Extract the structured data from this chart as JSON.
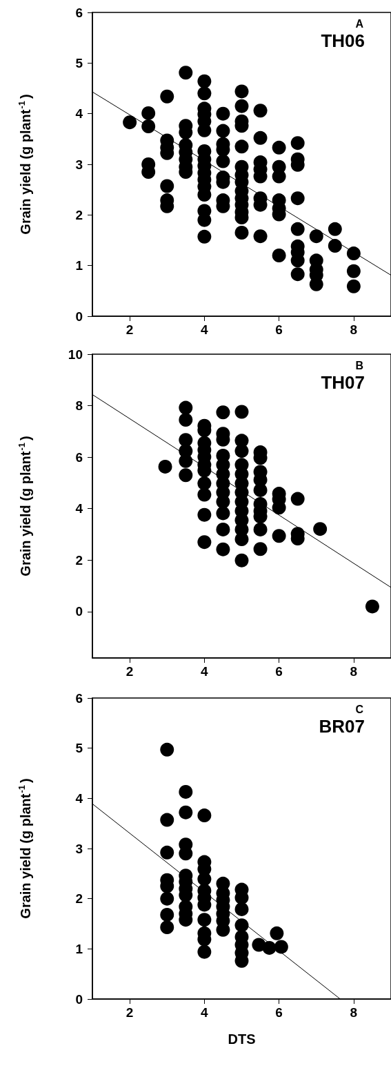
{
  "chart_data": [
    {
      "type": "scatter",
      "ylabel": "Grain yield (g plant$^{-1}$)",
      "annotations": [
        "A",
        "TH06"
      ],
      "xlim": [
        1,
        9
      ],
      "xticks": [
        2,
        4,
        6,
        8
      ],
      "ylim": [
        0,
        6
      ],
      "yticks": [
        0,
        1,
        2,
        3,
        4,
        5,
        6
      ],
      "series": [
        {
          "marker": "circle",
          "color": "#000000",
          "x": [
            2,
            2.5,
            2.5,
            2.5,
            2.5,
            3,
            3,
            3,
            3,
            3,
            3,
            3,
            3.5,
            3.5,
            3.5,
            3.5,
            3.5,
            3.5,
            3.5,
            3.5,
            4,
            4,
            4,
            4,
            4,
            4,
            4,
            4,
            4,
            4,
            4,
            4,
            4,
            4,
            4,
            4,
            4.5,
            4.5,
            4.5,
            4.5,
            4.5,
            4.5,
            4.5,
            4.5,
            4.5,
            5,
            5,
            5,
            5,
            5,
            5,
            5,
            5,
            5,
            5,
            5,
            5,
            5,
            5,
            5.5,
            5.5,
            5.5,
            5.5,
            5.5,
            5.5,
            5.5,
            5.5,
            6,
            6,
            6,
            6,
            6,
            6,
            6,
            6.5,
            6.5,
            6.5,
            6.5,
            6.5,
            6.5,
            6.5,
            6.5,
            6.5,
            7,
            7,
            7,
            7,
            7,
            7.5,
            7.5,
            8,
            8,
            8
          ],
          "values": [
            3.83,
            4.01,
            3.75,
            3,
            2.85,
            4.34,
            3.47,
            3.33,
            3.22,
            2.57,
            2.29,
            2.17,
            4.81,
            3.76,
            3.63,
            3.38,
            3.24,
            3.1,
            2.95,
            2.85,
            4.64,
            4.4,
            4.1,
            3.99,
            3.85,
            3.67,
            3.26,
            3.1,
            2.97,
            2.83,
            2.7,
            2.56,
            2.4,
            2.08,
            1.9,
            1.57,
            4,
            3.66,
            3.4,
            3.29,
            3.06,
            2.74,
            2.65,
            2.29,
            2.17,
            4.44,
            4.15,
            3.85,
            3.76,
            3.35,
            2.95,
            2.79,
            2.65,
            2.47,
            2.33,
            2.2,
            2.06,
            1.95,
            1.65,
            4.06,
            3.52,
            3.04,
            2.9,
            2.76,
            2.33,
            2.2,
            1.58,
            3.33,
            2.95,
            2.76,
            2.29,
            2.13,
            2.01,
            1.2,
            3.42,
            3.1,
            2.99,
            2.33,
            1.72,
            1.38,
            1.26,
            1.1,
            0.83,
            1.58,
            1.1,
            0.92,
            0.81,
            0.63,
            1.72,
            1.39,
            1.24,
            0.89,
            0.59
          ]
        },
        {
          "type": "line",
          "marker": "none",
          "color": "#000000",
          "x": [
            1,
            9
          ],
          "values": [
            4.43,
            0.81
          ]
        }
      ]
    },
    {
      "type": "scatter",
      "ylabel": "Grain yield (g plant$^{-1}$)",
      "annotations": [
        "B",
        "TH07"
      ],
      "xlim": [
        1,
        9
      ],
      "xticks": [
        2,
        4,
        6,
        8
      ],
      "ylim": [
        -1.8,
        10
      ],
      "yticks": [
        0,
        2,
        4,
        6,
        8,
        10
      ],
      "series": [
        {
          "marker": "circle",
          "color": "#000000",
          "x": [
            2.95,
            3.5,
            3.5,
            3.5,
            3.5,
            3.5,
            3.5,
            4,
            4,
            4,
            4,
            4,
            4,
            4,
            4,
            4,
            4,
            4,
            4.5,
            4.5,
            4.5,
            4.5,
            4.5,
            4.5,
            4.5,
            4.5,
            4.5,
            4.5,
            4.5,
            4.5,
            5,
            5,
            5,
            5,
            5,
            5,
            5,
            5,
            5,
            5,
            5,
            5,
            5,
            5.5,
            5.5,
            5.5,
            5.5,
            5.5,
            5.5,
            5.5,
            5.5,
            5.5,
            5.5,
            6,
            6,
            6,
            6,
            6.5,
            6.5,
            6.5,
            7.1,
            8.5
          ],
          "values": [
            5.63,
            7.92,
            7.45,
            6.67,
            6.24,
            5.85,
            5.3,
            7.22,
            7.04,
            6.55,
            6.28,
            6.01,
            5.7,
            5.48,
            4.98,
            4.54,
            3.76,
            2.7,
            7.74,
            6.91,
            6.68,
            6.06,
            5.7,
            5.34,
            4.98,
            4.63,
            4.27,
            3.82,
            3.19,
            2.42,
            7.76,
            6.64,
            6.24,
            5.7,
            5.34,
            4.98,
            4.63,
            4.27,
            3.91,
            3.55,
            3.19,
            2.81,
            1.99,
            6.19,
            5.97,
            5.43,
            5.12,
            4.72,
            4.18,
            3.91,
            3.69,
            3.19,
            2.43,
            4.58,
            4.36,
            4.04,
            2.94,
            4.38,
            3.02,
            2.84,
            3.21,
            0.2
          ]
        },
        {
          "type": "line",
          "marker": "none",
          "color": "#000000",
          "x": [
            1,
            9
          ],
          "values": [
            8.43,
            0.94
          ]
        }
      ]
    },
    {
      "type": "scatter",
      "ylabel": "Grain yield (g plant$^{-1}$)",
      "xlabel": "DTS",
      "annotations": [
        "C",
        "BR07"
      ],
      "xlim": [
        1,
        9
      ],
      "xticks": [
        2,
        4,
        6,
        8
      ],
      "ylim": [
        0,
        6
      ],
      "yticks": [
        0,
        1,
        2,
        3,
        4,
        5,
        6
      ],
      "series": [
        {
          "marker": "circle",
          "color": "#000000",
          "x": [
            3,
            3,
            3,
            3,
            3,
            3,
            3,
            3,
            3.5,
            3.5,
            3.5,
            3.5,
            3.5,
            3.5,
            3.5,
            3.5,
            3.5,
            3.5,
            3.5,
            4,
            4,
            4,
            4,
            4,
            4,
            4,
            4,
            4,
            4,
            4,
            4.5,
            4.5,
            4.5,
            4.5,
            4.5,
            4.5,
            4.5,
            5,
            5,
            5,
            5,
            5,
            5,
            5,
            5,
            5.46,
            5.74,
            5.94,
            6.06
          ],
          "values": [
            4.97,
            3.57,
            2.92,
            2.37,
            2.25,
            2,
            1.68,
            1.43,
            4.13,
            3.72,
            3.08,
            2.9,
            2.46,
            2.34,
            2.2,
            2.07,
            1.84,
            1.7,
            1.58,
            3.66,
            2.73,
            2.59,
            2.39,
            2.16,
            2.02,
            1.88,
            1.58,
            1.31,
            1.19,
            0.94,
            2.3,
            2.11,
            1.97,
            1.84,
            1.7,
            1.56,
            1.38,
            2.18,
            2.02,
            1.79,
            1.47,
            1.24,
            1.08,
            0.92,
            0.76,
            1.08,
            1.02,
            1.31,
            1.04
          ]
        },
        {
          "type": "line",
          "marker": "none",
          "color": "#000000",
          "x": [
            1,
            7.64
          ],
          "values": [
            3.89,
            0
          ]
        }
      ]
    }
  ]
}
